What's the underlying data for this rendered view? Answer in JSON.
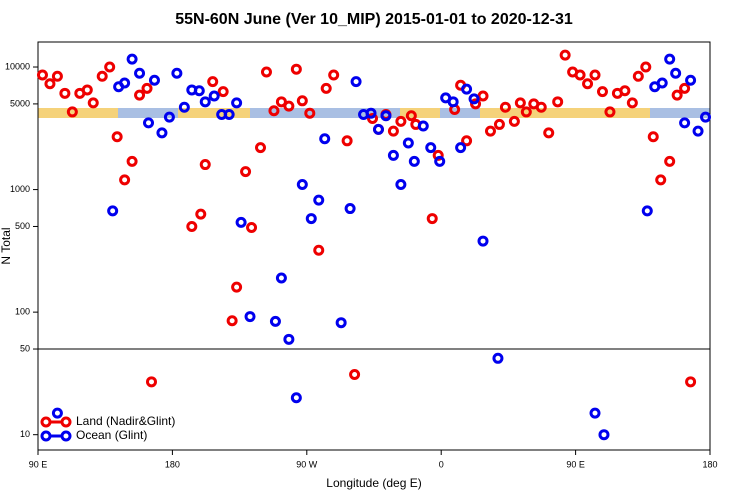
{
  "chart_data": {
    "type": "scatter",
    "title": "55N-60N June (Ver 10_MIP)   2015-01-01 to 2020-12-31",
    "x_label": "Longitude (deg E)",
    "y_label": "N Total",
    "log_y": true,
    "xlim": [
      90,
      540
    ],
    "xticks": [
      {
        "value": 90,
        "label": "90 E"
      },
      180,
      {
        "value": 270,
        "label": "90 W"
      },
      {
        "value": 360,
        "label": "0"
      },
      {
        "value": 450,
        "label": "90 E"
      },
      {
        "value": 540,
        "label": "180"
      }
    ],
    "ylim": [
      7.5,
      16000
    ],
    "yticks": [
      10,
      50,
      100,
      500,
      1000,
      5000,
      10000
    ],
    "hline": 50,
    "legend": "bottom-left",
    "series": [
      {
        "name": "Land (Nadir&Glint)",
        "color": "#ee0000",
        "x": [
          93,
          98,
          103,
          108,
          113,
          118,
          123,
          127,
          133,
          138,
          143,
          148,
          153,
          158,
          163,
          166,
          193,
          199,
          202,
          207,
          214,
          220,
          223,
          229,
          233,
          239,
          243,
          248,
          253,
          258,
          263,
          267,
          272,
          278,
          283,
          288,
          297,
          302,
          314,
          318,
          323,
          328,
          333,
          340,
          343,
          354,
          358,
          369,
          373,
          377,
          383,
          388,
          393,
          399,
          403,
          409,
          413,
          417,
          422,
          427,
          432,
          438,
          443,
          448,
          453,
          458,
          463,
          468,
          473,
          478,
          483,
          488,
          492,
          497,
          502,
          507,
          513,
          518,
          523,
          527
        ],
        "values": [
          8600,
          7300,
          8400,
          6100,
          4300,
          6100,
          6500,
          5100,
          8400,
          10000,
          2700,
          1200,
          1700,
          5900,
          6700,
          27,
          500,
          630,
          1600,
          7600,
          6300,
          85,
          160,
          1400,
          490,
          2200,
          9100,
          4400,
          5200,
          4800,
          9600,
          5300,
          4200,
          320,
          6700,
          8600,
          2500,
          31,
          3800,
          3100,
          4100,
          3000,
          3600,
          4000,
          3400,
          580,
          1900,
          4500,
          7100,
          2500,
          5000,
          5800,
          3000,
          3400,
          4700,
          3600,
          5100,
          4300,
          5000,
          4700,
          2900,
          5200,
          12500,
          9100,
          8600,
          7300,
          8600,
          6300,
          4300,
          6100,
          6400,
          5100,
          8400,
          10000,
          2700,
          1200,
          1700,
          5900,
          6700,
          27
        ]
      },
      {
        "name": "Ocean (Glint)",
        "color": "#0000ee",
        "x": [
          103,
          140,
          144,
          148,
          153,
          158,
          164,
          168,
          173,
          178,
          183,
          188,
          193,
          198,
          202,
          208,
          213,
          218,
          223,
          226,
          232,
          249,
          253,
          258,
          263,
          267,
          273,
          278,
          282,
          293,
          299,
          303,
          308,
          313,
          318,
          323,
          328,
          333,
          338,
          342,
          348,
          353,
          359,
          363,
          368,
          373,
          377,
          382,
          388,
          398,
          463,
          469,
          498,
          503,
          508,
          513,
          517,
          523,
          527,
          532,
          537
        ],
        "values": [
          15,
          670,
          6900,
          7400,
          11600,
          8900,
          3500,
          7800,
          2900,
          3900,
          8900,
          4700,
          6500,
          6400,
          5200,
          5800,
          4100,
          4100,
          5100,
          540,
          92,
          84,
          190,
          60,
          20,
          1100,
          580,
          820,
          2600,
          82,
          700,
          7600,
          4100,
          4200,
          3100,
          4000,
          1900,
          1100,
          2400,
          1700,
          3300,
          2200,
          1700,
          5600,
          5200,
          2200,
          6600,
          5500,
          380,
          42,
          15,
          10,
          670,
          6900,
          7400,
          11600,
          8900,
          3500,
          7800,
          3000,
          3900
        ]
      }
    ]
  }
}
